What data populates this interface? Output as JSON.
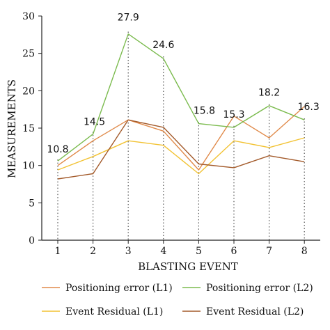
{
  "chart_data": {
    "type": "line",
    "xlabel": "BLASTING EVENT",
    "ylabel": "MEASUREMENTS",
    "categories": [
      "1",
      "2",
      "3",
      "4",
      "5",
      "6",
      "7",
      "8"
    ],
    "ylim": [
      0,
      30
    ],
    "yticks": [
      "0",
      "5",
      "10",
      "15",
      "20",
      "25",
      "30"
    ],
    "grid": false,
    "legend_position": "bottom",
    "series": [
      {
        "name": "Positioning error (L1)",
        "color": "#e08a4a",
        "values": [
          10.0,
          13.3,
          16.1,
          14.6,
          9.4,
          16.6,
          13.7,
          17.9
        ]
      },
      {
        "name": "Positioning error (L2)",
        "color": "#7bbb4e",
        "values": [
          10.6,
          14.2,
          27.6,
          24.3,
          15.6,
          15.1,
          18.0,
          16.1
        ]
      },
      {
        "name": "Event Residual (L1)",
        "color": "#f2c232",
        "values": [
          9.4,
          11.2,
          13.3,
          12.7,
          8.9,
          13.3,
          12.4,
          13.7
        ]
      },
      {
        "name": "Event Residual (L2)",
        "color": "#a35a2a",
        "values": [
          8.2,
          8.9,
          16.1,
          15.1,
          10.2,
          9.7,
          11.3,
          10.5
        ]
      }
    ],
    "annotations": [
      {
        "category": "1",
        "value": 10.8,
        "text": "10.8"
      },
      {
        "category": "2",
        "value": 14.5,
        "text": "14.5"
      },
      {
        "category": "3",
        "value": 27.9,
        "text": "27.9"
      },
      {
        "category": "4",
        "value": 24.6,
        "text": "24.6"
      },
      {
        "category": "5",
        "value": 15.8,
        "text": "15.8"
      },
      {
        "category": "6",
        "value": 15.3,
        "text": "15.3"
      },
      {
        "category": "7",
        "value": 18.2,
        "text": "18.2"
      },
      {
        "category": "8",
        "value": 16.3,
        "text": "16.3"
      }
    ],
    "drop_line_color": "#555555"
  }
}
